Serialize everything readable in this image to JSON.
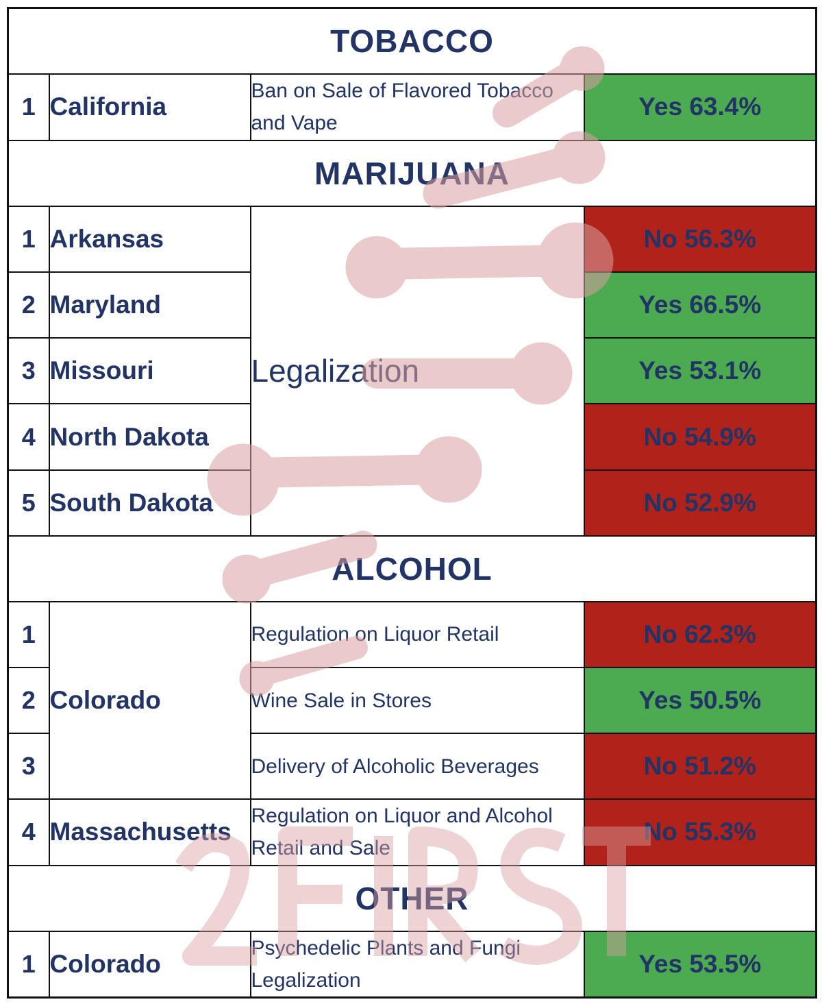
{
  "colors": {
    "yes": "#4caa50",
    "no": "#b0221a",
    "text": "#223366",
    "watermark": "#d9a0a0"
  },
  "watermark": {
    "text": "2FIRSTS"
  },
  "sections": {
    "tobacco": {
      "title": "TOBACCO",
      "rows": [
        {
          "num": "1",
          "state": "California",
          "measure": "Ban on Sale of Flavored Tobacco and Vape",
          "result": "Yes 63.4%",
          "outcome": "yes"
        }
      ]
    },
    "marijuana": {
      "title": "MARIJUANA",
      "measure": "Legalization",
      "rows": [
        {
          "num": "1",
          "state": "Arkansas",
          "result": "No 56.3%",
          "outcome": "no"
        },
        {
          "num": "2",
          "state": "Maryland",
          "result": "Yes 66.5%",
          "outcome": "yes"
        },
        {
          "num": "3",
          "state": "Missouri",
          "result": "Yes 53.1%",
          "outcome": "yes"
        },
        {
          "num": "4",
          "state": "North Dakota",
          "result": "No 54.9%",
          "outcome": "no"
        },
        {
          "num": "5",
          "state": "South Dakota",
          "result": "No 52.9%",
          "outcome": "no"
        }
      ]
    },
    "alcohol": {
      "title": "ALCOHOL",
      "rows": [
        {
          "num": "1",
          "state": "Colorado",
          "measure": "Regulation on Liquor Retail",
          "result": "No 62.3%",
          "outcome": "no"
        },
        {
          "num": "2",
          "measure": "Wine Sale in Stores",
          "result": "Yes 50.5%",
          "outcome": "yes"
        },
        {
          "num": "3",
          "measure": "Delivery of Alcoholic Beverages",
          "result": "No 51.2%",
          "outcome": "no"
        },
        {
          "num": "4",
          "state": "Massachusetts",
          "measure": "Regulation on Liquor and Alcohol Retail and Sale",
          "result": "No 55.3%",
          "outcome": "no"
        }
      ]
    },
    "other": {
      "title": "OTHER",
      "rows": [
        {
          "num": "1",
          "state": "Colorado",
          "measure": "Psychedelic Plants and Fungi Legalization",
          "result": "Yes 53.5%",
          "outcome": "yes"
        }
      ]
    }
  }
}
